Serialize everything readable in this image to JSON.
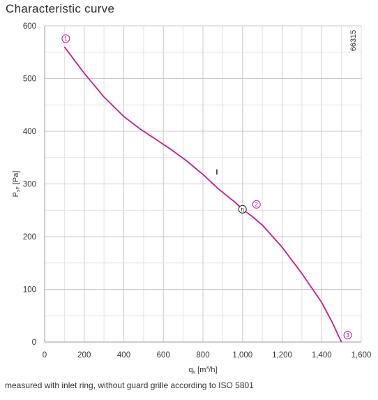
{
  "page": {
    "title": "Characteristic curve",
    "footnote": "measured with inlet ring, without guard grille according to ISO 5801"
  },
  "chart_data": {
    "type": "line",
    "title": "Characteristic curve",
    "xlabel_main": "q",
    "xlabel_sub": "v",
    "xlabel_unit_pre": " [m",
    "xlabel_unit_sup": "3",
    "xlabel_unit_post": "/h]",
    "ylabel_main": "P",
    "ylabel_sub": "sF",
    "ylabel_unit": " [Pa]",
    "xlim": [
      0,
      1600
    ],
    "ylim": [
      0,
      600
    ],
    "x_ticks": [
      0,
      200,
      400,
      600,
      800,
      1000,
      1200,
      1400,
      1600
    ],
    "x_tick_labels": [
      "0",
      "200",
      "400",
      "600",
      "800",
      "1,000",
      "1,200",
      "1,400",
      "1,600"
    ],
    "y_ticks": [
      0,
      100,
      200,
      300,
      400,
      500,
      600
    ],
    "y_tick_labels": [
      "0",
      "100",
      "200",
      "300",
      "400",
      "500",
      "600"
    ],
    "grid": true,
    "line_color": "#c81a8a",
    "side_code": "66315",
    "curve_label": "I",
    "series": [
      {
        "x": [
          100,
          200,
          300,
          400,
          480,
          560,
          640,
          720,
          800,
          880,
          960,
          1000,
          1050,
          1100,
          1200,
          1300,
          1400,
          1450,
          1500
        ],
        "y": [
          560,
          510,
          465,
          428,
          405,
          385,
          365,
          343,
          318,
          290,
          266,
          252,
          238,
          222,
          180,
          130,
          75,
          40,
          0
        ]
      }
    ],
    "markers": [
      {
        "label": "1",
        "x": 100,
        "y": 560,
        "style": "pink"
      },
      {
        "label": "2",
        "x": 1000,
        "y": 252,
        "style": "pink"
      },
      {
        "label": "3",
        "x": 1500,
        "y": 0,
        "style": "pink"
      },
      {
        "label": "η",
        "x": 1000,
        "y": 252,
        "style": "black"
      }
    ]
  }
}
